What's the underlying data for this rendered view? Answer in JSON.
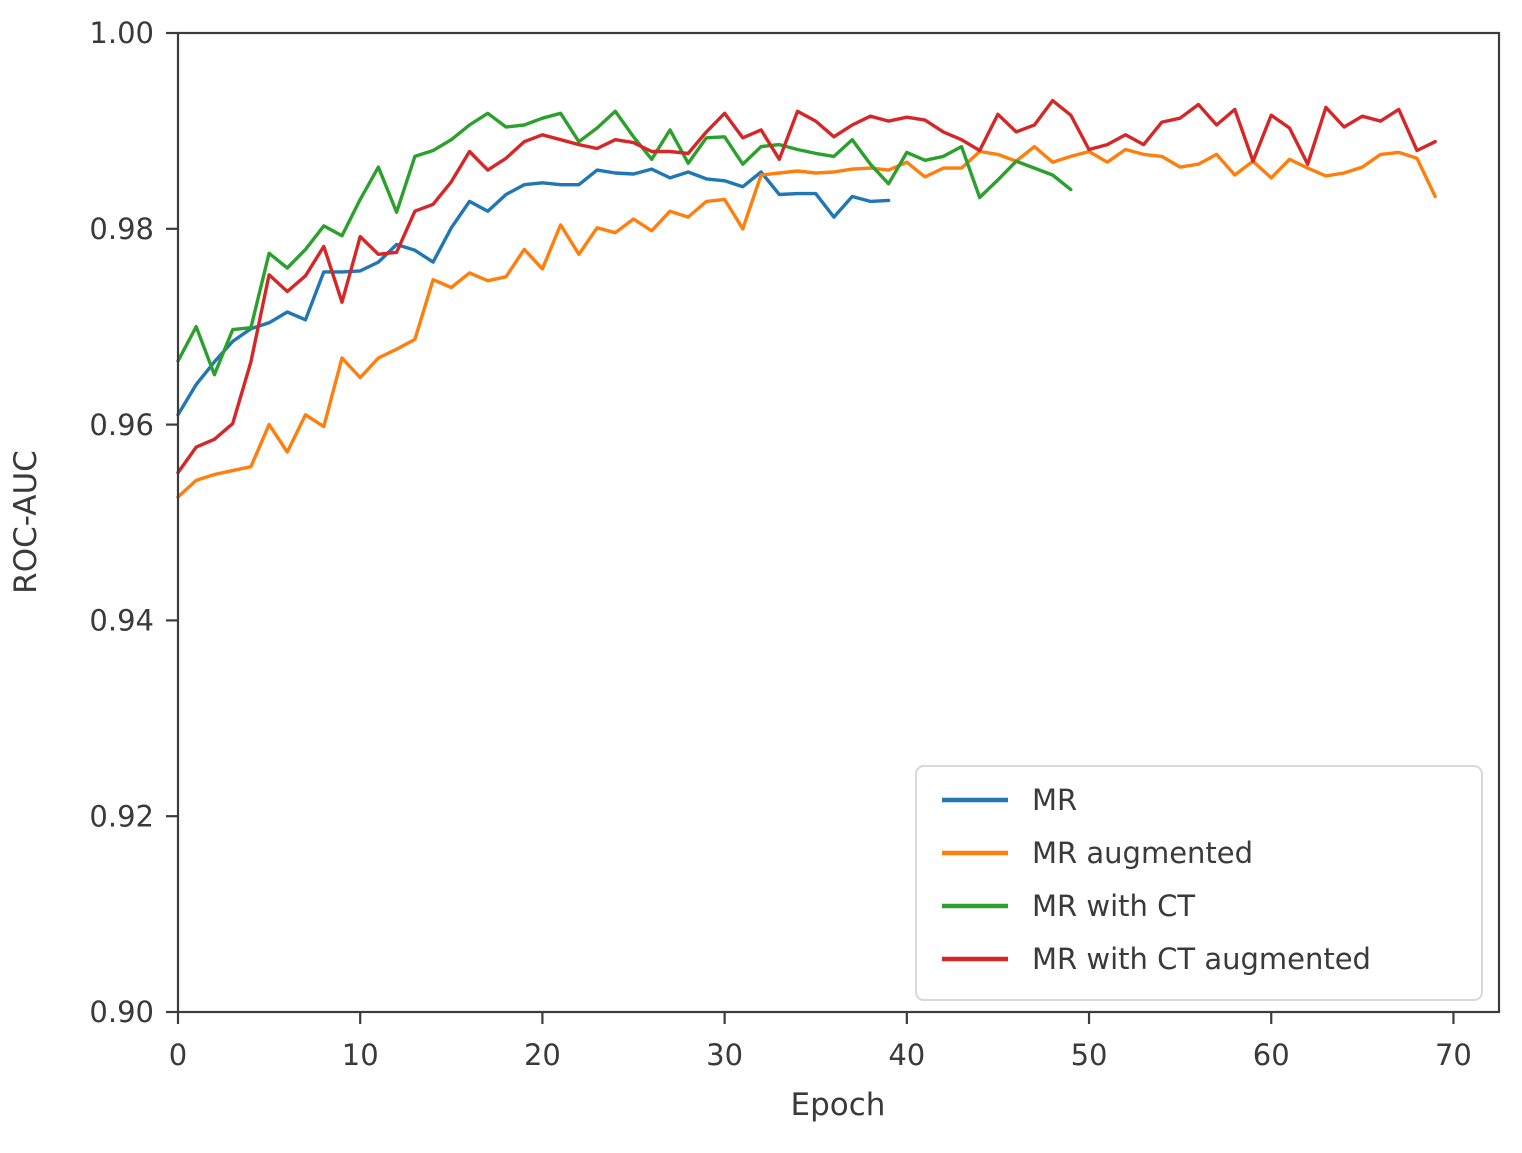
{
  "chart_data": {
    "type": "line",
    "title": "",
    "xlabel": "Epoch",
    "ylabel": "ROC-AUC",
    "xlim": [
      0,
      72.5
    ],
    "ylim": [
      0.9,
      1.0
    ],
    "x_ticks": [
      0,
      10,
      20,
      30,
      40,
      50,
      60,
      70
    ],
    "x_tick_labels": [
      "0",
      "10",
      "20",
      "30",
      "40",
      "50",
      "60",
      "70"
    ],
    "y_ticks": [
      0.9,
      0.92,
      0.94,
      0.96,
      0.98,
      1.0
    ],
    "y_tick_labels": [
      "0.90",
      "0.92",
      "0.94",
      "0.96",
      "0.98",
      "1.00"
    ],
    "grid": false,
    "legend_position": "lower right",
    "colors": {
      "spine": "#3c3c3c",
      "text": "#3a3a3a",
      "legend_border": "#d8d8d8",
      "background": "#ffffff"
    },
    "series": [
      {
        "name": "MR",
        "color": "#1f77b4",
        "x_start": 0,
        "x_step": 1,
        "values": [
          0.961,
          0.9641,
          0.9664,
          0.9685,
          0.9698,
          0.9704,
          0.9715,
          0.9707,
          0.9756,
          0.9756,
          0.9757,
          0.9766,
          0.9784,
          0.9778,
          0.9766,
          0.9801,
          0.9828,
          0.9818,
          0.9835,
          0.9845,
          0.9847,
          0.9845,
          0.9845,
          0.986,
          0.9857,
          0.9856,
          0.9861,
          0.9852,
          0.9858,
          0.9851,
          0.9849,
          0.9843,
          0.9858,
          0.9835,
          0.9836,
          0.9836,
          0.9812,
          0.9833,
          0.9828,
          0.9829
        ]
      },
      {
        "name": "MR augmented",
        "color": "#ff7f0e",
        "x_start": 0,
        "x_step": 1,
        "values": [
          0.9526,
          0.9543,
          0.9549,
          0.9553,
          0.9557,
          0.96,
          0.9572,
          0.961,
          0.9598,
          0.9668,
          0.9648,
          0.9668,
          0.9677,
          0.9687,
          0.9748,
          0.974,
          0.9755,
          0.9747,
          0.9751,
          0.9779,
          0.9759,
          0.9804,
          0.9774,
          0.9801,
          0.9796,
          0.981,
          0.9798,
          0.9818,
          0.9812,
          0.9828,
          0.983,
          0.98,
          0.9855,
          0.9857,
          0.9859,
          0.9857,
          0.9858,
          0.9861,
          0.9862,
          0.986,
          0.9868,
          0.9853,
          0.9862,
          0.9862,
          0.9879,
          0.9876,
          0.9869,
          0.9884,
          0.9868,
          0.9874,
          0.9879,
          0.9868,
          0.9881,
          0.9876,
          0.9874,
          0.9863,
          0.9866,
          0.9876,
          0.9855,
          0.9869,
          0.9852,
          0.9871,
          0.9862,
          0.9854,
          0.9857,
          0.9863,
          0.9876,
          0.9878,
          0.9872,
          0.9833
        ]
      },
      {
        "name": "MR with CT",
        "color": "#2ca02c",
        "x_start": 0,
        "x_step": 1,
        "values": [
          0.9665,
          0.97,
          0.9651,
          0.9697,
          0.9699,
          0.9775,
          0.976,
          0.9779,
          0.9803,
          0.9793,
          0.983,
          0.9863,
          0.9817,
          0.9874,
          0.988,
          0.9891,
          0.9906,
          0.9918,
          0.9904,
          0.9906,
          0.9913,
          0.9918,
          0.9889,
          0.9903,
          0.992,
          0.9894,
          0.9871,
          0.9901,
          0.9867,
          0.9893,
          0.9894,
          0.9866,
          0.9884,
          0.9886,
          0.9881,
          0.9877,
          0.9874,
          0.9891,
          0.9866,
          0.9846,
          0.9878,
          0.987,
          0.9874,
          0.9884,
          0.9832,
          0.985,
          0.9869,
          0.9862,
          0.9855,
          0.984
        ]
      },
      {
        "name": "MR with CT augmented",
        "color": "#d62728",
        "x_start": 0,
        "x_step": 1,
        "values": [
          0.9551,
          0.9577,
          0.9585,
          0.9601,
          0.9664,
          0.9753,
          0.9736,
          0.9752,
          0.9782,
          0.9725,
          0.9792,
          0.9774,
          0.9776,
          0.9818,
          0.9825,
          0.9848,
          0.9879,
          0.986,
          0.9872,
          0.9889,
          0.9896,
          0.9891,
          0.9886,
          0.9882,
          0.9891,
          0.9888,
          0.9879,
          0.9879,
          0.9877,
          0.9899,
          0.9918,
          0.9893,
          0.9901,
          0.9871,
          0.992,
          0.991,
          0.9894,
          0.9906,
          0.9915,
          0.991,
          0.9914,
          0.9911,
          0.9899,
          0.9891,
          0.988,
          0.9917,
          0.9899,
          0.9906,
          0.9931,
          0.9916,
          0.9881,
          0.9886,
          0.9896,
          0.9886,
          0.9909,
          0.9913,
          0.9927,
          0.9906,
          0.9922,
          0.9869,
          0.9916,
          0.9903,
          0.9866,
          0.9924,
          0.9904,
          0.9915,
          0.991,
          0.9922,
          0.988,
          0.9889
        ]
      }
    ]
  }
}
